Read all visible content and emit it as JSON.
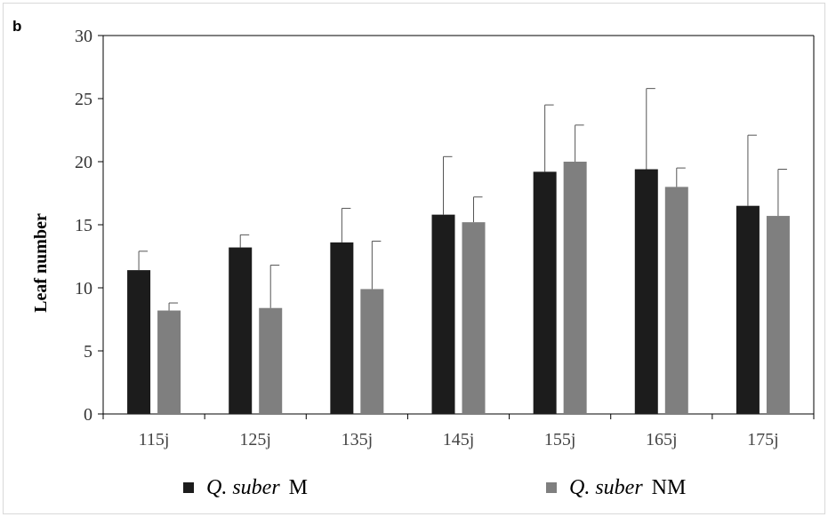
{
  "panel_label": "b",
  "chart_data": {
    "type": "bar",
    "title": "",
    "xlabel": "",
    "ylabel": "Leaf number",
    "ylim": [
      0,
      30
    ],
    "yticks": [
      0,
      5,
      10,
      15,
      20,
      25,
      30
    ],
    "categories": [
      "115j",
      "125j",
      "135j",
      "145j",
      "155j",
      "165j",
      "175j"
    ],
    "series": [
      {
        "name": "Q. suber M",
        "name_italic": "Q. suber",
        "name_suffix": "M",
        "color": "#1c1c1c",
        "values": [
          11.4,
          13.2,
          13.6,
          15.8,
          19.2,
          19.4,
          16.5
        ],
        "errors": [
          1.5,
          1.0,
          2.7,
          4.6,
          5.3,
          6.4,
          5.6
        ]
      },
      {
        "name": "Q. suber NM",
        "name_italic": "Q. suber",
        "name_suffix": "NM",
        "color": "#7f7f7f",
        "values": [
          8.2,
          8.4,
          9.9,
          15.2,
          20.0,
          18.0,
          15.7
        ],
        "errors": [
          0.6,
          3.4,
          3.8,
          2.0,
          2.9,
          1.5,
          3.7
        ]
      }
    ],
    "legend_position": "bottom",
    "grid": false
  }
}
